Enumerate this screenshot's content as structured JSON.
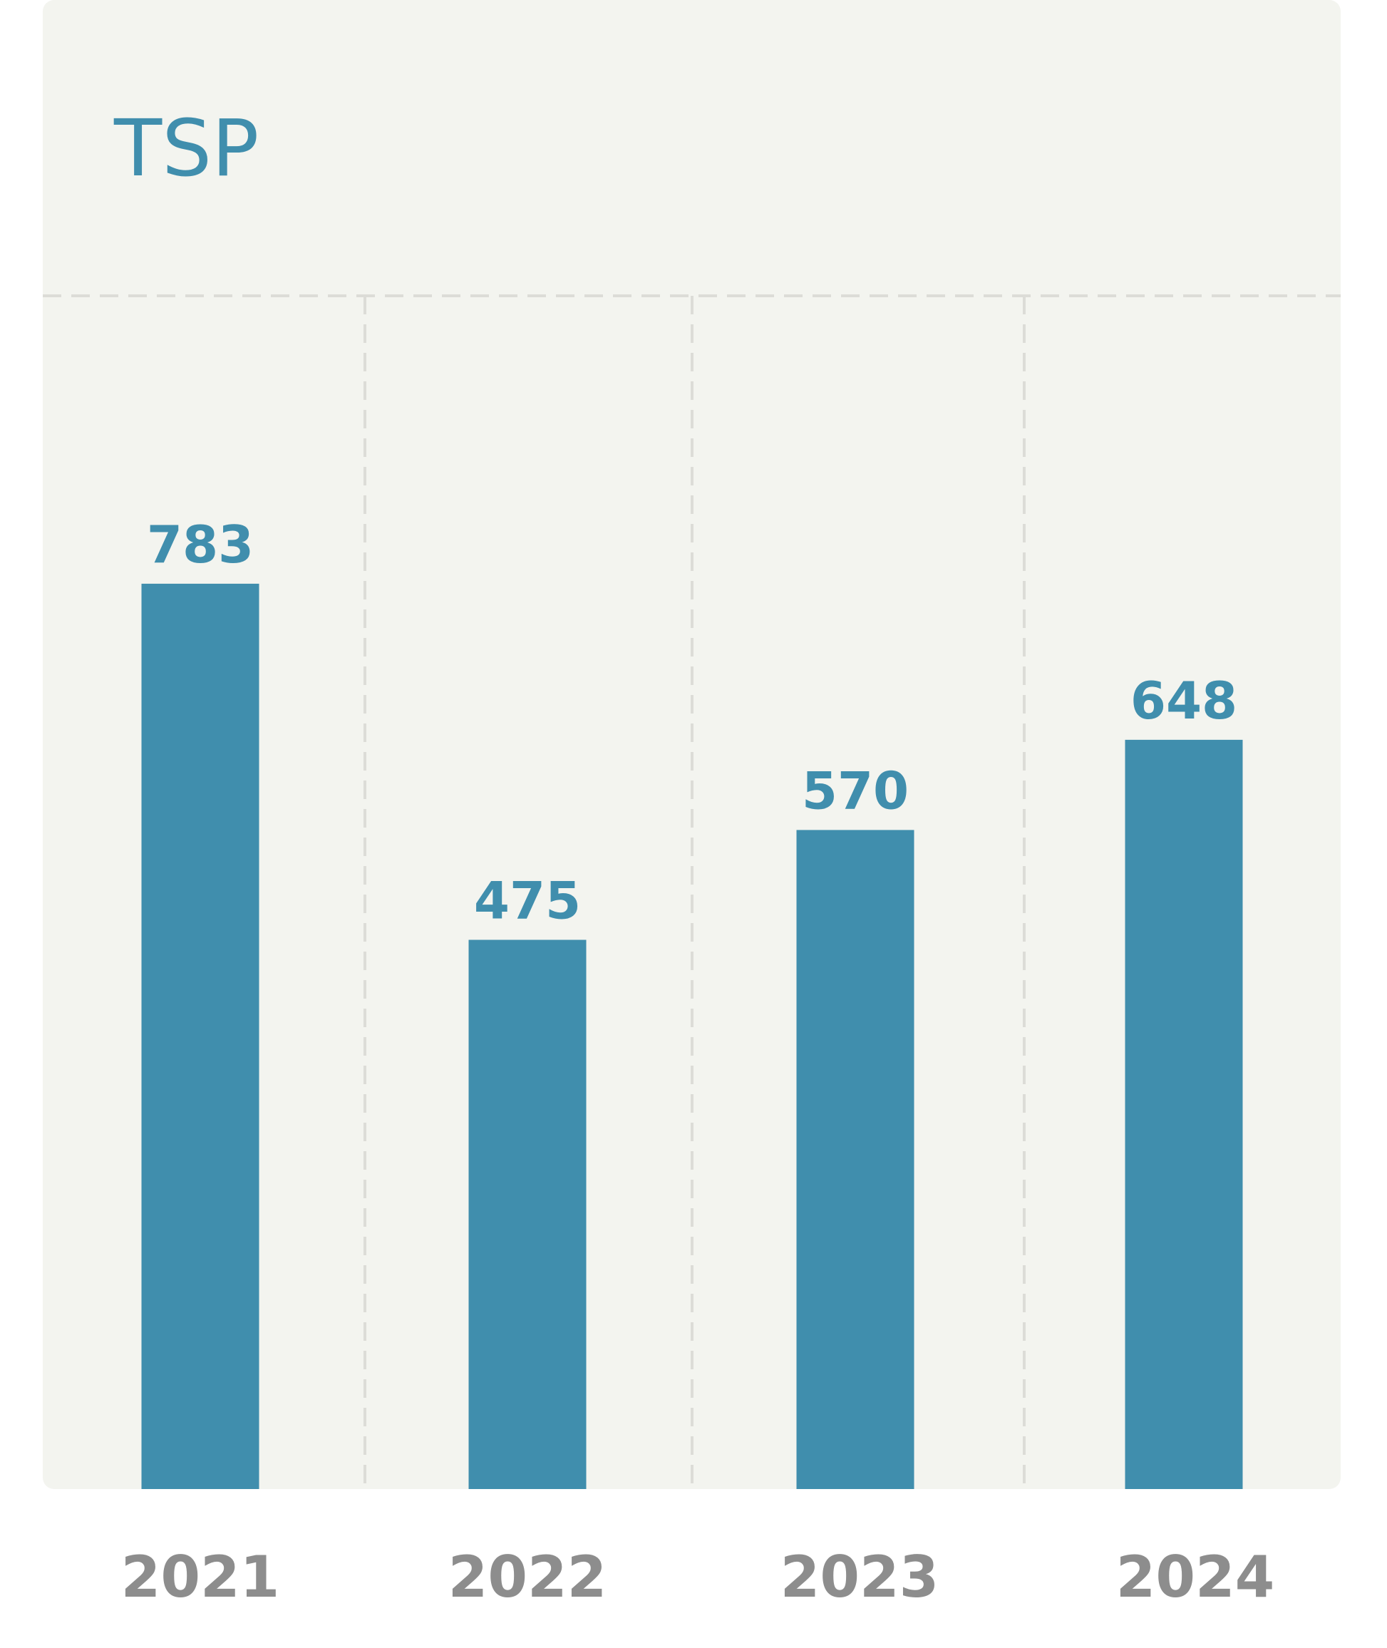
{
  "chart_data": {
    "type": "bar",
    "title": "TSP",
    "categories": [
      "2021",
      "2022",
      "2023",
      "2024"
    ],
    "values": [
      783,
      475,
      570,
      648
    ],
    "color": "#408ead",
    "ylim": [
      0,
      1032
    ]
  }
}
